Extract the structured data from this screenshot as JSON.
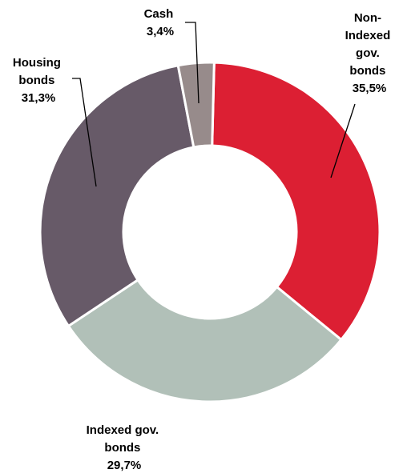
{
  "chart_data": {
    "type": "pie",
    "donut": true,
    "slices": [
      {
        "label_lines": [
          "Non-",
          "Indexed",
          "gov.",
          "bonds"
        ],
        "value_text": "35,5%",
        "value": 35.5,
        "color": "#dc1f33"
      },
      {
        "label_lines": [
          "Indexed gov.",
          "bonds"
        ],
        "value_text": "29,7%",
        "value": 29.7,
        "color": "#b1c0b8"
      },
      {
        "label_lines": [
          "Housing",
          "bonds"
        ],
        "value_text": "31,3%",
        "value": 31.3,
        "color": "#675a68"
      },
      {
        "label_lines": [
          "Cash"
        ],
        "value_text": "3,4%",
        "value": 3.4,
        "color": "#978b8b"
      }
    ]
  }
}
